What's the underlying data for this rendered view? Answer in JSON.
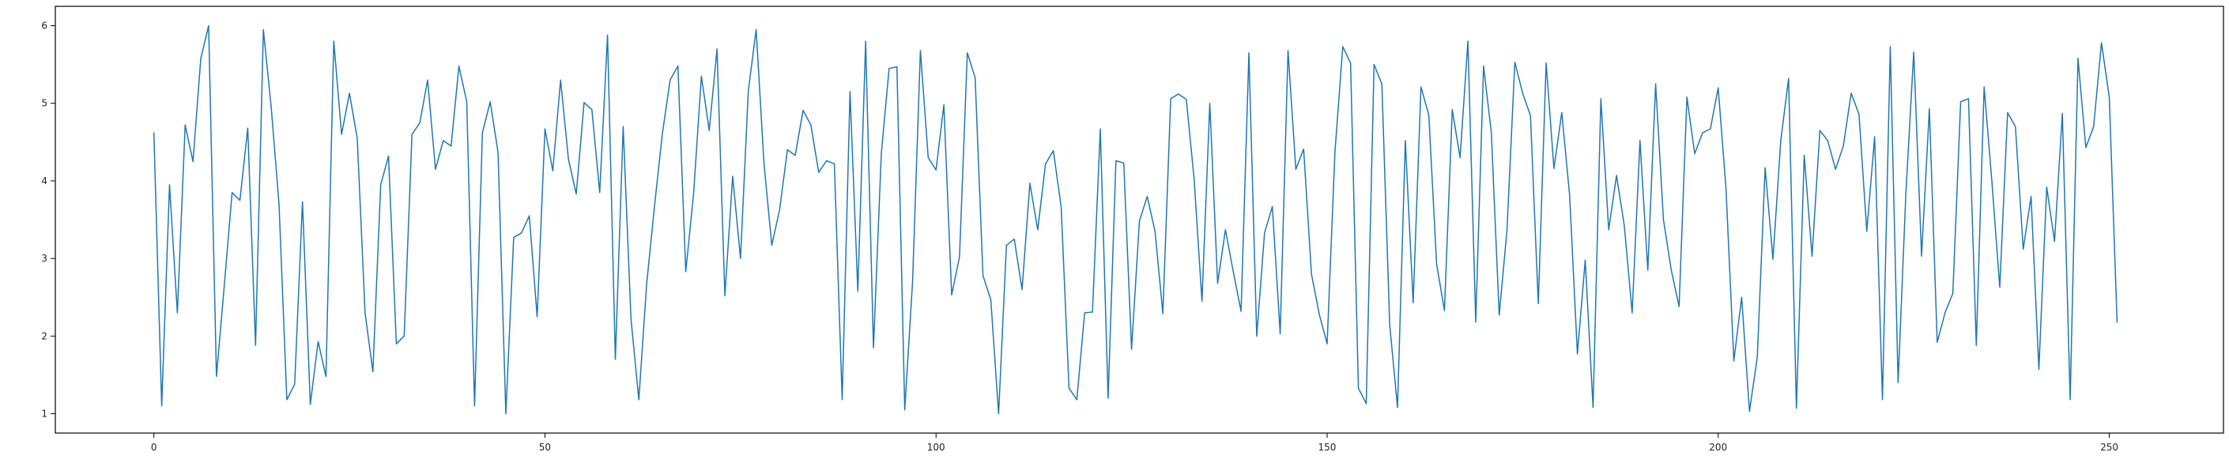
{
  "chart_data": {
    "type": "line",
    "title": "",
    "xlabel": "",
    "ylabel": "",
    "xlim": [
      -12.6,
      264.6
    ],
    "ylim": [
      0.75,
      6.25
    ],
    "xticks": [
      0,
      50,
      100,
      150,
      200,
      250
    ],
    "yticks": [
      1,
      2,
      3,
      4,
      5,
      6
    ],
    "grid": false,
    "legend": "none",
    "line_color": "#1f77b4",
    "series": [
      {
        "x": [
          0,
          1,
          2,
          3,
          4,
          5,
          6,
          7,
          8,
          9,
          10,
          11,
          12,
          13,
          14,
          15,
          16,
          17,
          18,
          19,
          20,
          21,
          22,
          23,
          24,
          25,
          26,
          27,
          28,
          29,
          30,
          31,
          32,
          33,
          34,
          35,
          36,
          37,
          38,
          39,
          40,
          41,
          42,
          43,
          44,
          45,
          46,
          47,
          48,
          49,
          50,
          51,
          52,
          53,
          54,
          55,
          56,
          57,
          58,
          59,
          60,
          61,
          62,
          63,
          64,
          65,
          66,
          67,
          68,
          69,
          70,
          71,
          72,
          73,
          74,
          75,
          76,
          77,
          78,
          79,
          80,
          81,
          82,
          83,
          84,
          85,
          86,
          87,
          88,
          89,
          90,
          91,
          92,
          93,
          94,
          95,
          96,
          97,
          98,
          99,
          100,
          101,
          102,
          103,
          104,
          105,
          106,
          107,
          108,
          109,
          110,
          111,
          112,
          113,
          114,
          115,
          116,
          117,
          118,
          119,
          120,
          121,
          122,
          123,
          124,
          125,
          126,
          127,
          128,
          129,
          130,
          131,
          132,
          133,
          134,
          135,
          136,
          137,
          138,
          139,
          140,
          141,
          142,
          143,
          144,
          145,
          146,
          147,
          148,
          149,
          150,
          151,
          152,
          153,
          154,
          155,
          156,
          157,
          158,
          159,
          160,
          161,
          162,
          163,
          164,
          165,
          166,
          167,
          168,
          169,
          170,
          171,
          172,
          173,
          174,
          175,
          176,
          177,
          178,
          179,
          180,
          181,
          182,
          183,
          184,
          185,
          186,
          187,
          188,
          189,
          190,
          191,
          192,
          193,
          194,
          195,
          196,
          197,
          198,
          199,
          200,
          201,
          202,
          203,
          204,
          205,
          206,
          207,
          208,
          209,
          210,
          211,
          212,
          213,
          214,
          215,
          216,
          217,
          218,
          219,
          220,
          221,
          222,
          223,
          224,
          225,
          226,
          227,
          228,
          229,
          230,
          231,
          232,
          233,
          234,
          235,
          236,
          237,
          238,
          239,
          240,
          241,
          242,
          243,
          244,
          245,
          246,
          247,
          248,
          249,
          250,
          251
        ],
        "values": [
          4.62,
          1.1,
          3.95,
          2.3,
          4.72,
          4.25,
          5.58,
          6.0,
          1.48,
          2.65,
          3.85,
          3.75,
          4.68,
          1.88,
          5.95,
          4.95,
          3.7,
          1.18,
          1.38,
          3.73,
          1.12,
          1.93,
          1.48,
          5.8,
          4.6,
          5.13,
          4.55,
          2.3,
          1.54,
          3.95,
          4.32,
          1.9,
          2.0,
          4.6,
          4.75,
          5.3,
          4.15,
          4.52,
          4.45,
          5.48,
          5.02,
          1.1,
          4.62,
          5.02,
          4.37,
          1.0,
          3.27,
          3.33,
          3.55,
          2.25,
          4.67,
          4.13,
          5.3,
          4.28,
          3.83,
          5.01,
          4.92,
          3.85,
          5.88,
          1.7,
          4.7,
          2.22,
          1.18,
          2.67,
          3.67,
          4.6,
          5.3,
          5.48,
          2.83,
          3.83,
          5.35,
          4.65,
          5.7,
          2.52,
          4.06,
          3.0,
          5.16,
          5.95,
          4.23,
          3.17,
          3.63,
          4.4,
          4.33,
          4.91,
          4.72,
          4.11,
          4.26,
          4.22,
          1.18,
          5.15,
          2.58,
          5.8,
          1.85,
          4.35,
          5.45,
          5.47,
          1.05,
          2.7,
          5.68,
          4.3,
          4.14,
          4.98,
          2.53,
          3.02,
          5.65,
          5.33,
          2.78,
          2.47,
          1.0,
          3.17,
          3.25,
          2.6,
          3.97,
          3.37,
          4.22,
          4.39,
          3.66,
          1.33,
          1.18,
          2.3,
          2.31,
          4.67,
          1.2,
          4.26,
          4.23,
          1.83,
          3.48,
          3.8,
          3.35,
          2.29,
          5.06,
          5.12,
          5.05,
          4.02,
          2.45,
          5.0,
          2.68,
          3.37,
          2.83,
          2.32,
          5.65,
          2.0,
          3.33,
          3.67,
          2.03,
          5.68,
          4.15,
          4.41,
          2.8,
          2.28,
          1.9,
          4.37,
          5.73,
          5.52,
          1.33,
          1.13,
          5.5,
          5.25,
          2.15,
          1.08,
          4.52,
          2.43,
          5.21,
          4.85,
          2.93,
          2.33,
          4.92,
          4.3,
          5.8,
          2.18,
          5.48,
          4.62,
          2.27,
          3.37,
          5.53,
          5.13,
          4.84,
          2.42,
          5.52,
          4.16,
          4.88,
          3.82,
          1.77,
          2.98,
          1.08,
          5.06,
          3.37,
          4.07,
          3.42,
          2.3,
          4.52,
          2.85,
          5.25,
          3.5,
          2.85,
          2.38,
          5.08,
          4.35,
          4.62,
          4.67,
          5.2,
          3.9,
          1.68,
          2.5,
          1.03,
          1.73,
          4.17,
          2.99,
          4.52,
          5.32,
          1.07,
          4.33,
          3.03,
          4.65,
          4.52,
          4.15,
          4.45,
          5.13,
          4.86,
          3.35,
          4.57,
          1.18,
          5.73,
          1.4,
          3.85,
          5.66,
          3.03,
          4.93,
          1.92,
          2.3,
          2.55,
          5.02,
          5.06,
          1.88,
          5.21,
          3.98,
          2.63,
          4.88,
          4.7,
          3.12,
          3.8,
          1.57,
          3.92,
          3.22,
          4.87,
          1.18,
          5.58,
          4.43,
          4.7,
          5.78,
          5.08,
          2.18
        ]
      }
    ]
  }
}
